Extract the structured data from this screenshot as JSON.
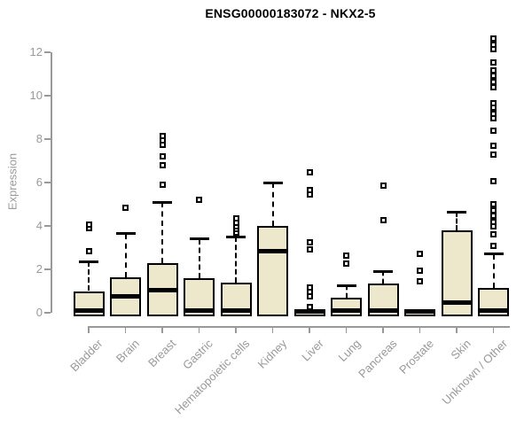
{
  "chart_data": {
    "type": "box",
    "title": "ENSG00000183072 - NKX2-5",
    "ylabel": "Expression",
    "xlabel": "",
    "ylim": [
      0,
      12.8
    ],
    "yticks": [
      0,
      2,
      4,
      6,
      8,
      10,
      12
    ],
    "grid": false,
    "legend": "none",
    "categories": [
      "Bladder",
      "Brain",
      "Breast",
      "Gastric",
      "Hematopoietic cells",
      "Kidney",
      "Liver",
      "Lung",
      "Pancreas",
      "Prostate",
      "Skin",
      "Unknown / Other"
    ],
    "series": [
      {
        "name": "Bladder",
        "whisker_low": 0,
        "q1": 0,
        "median": 0.1,
        "q3": 1.0,
        "whisker_high": 2.35,
        "outliers": [
          2.85,
          3.9,
          4.05
        ]
      },
      {
        "name": "Brain",
        "whisker_low": 0,
        "q1": 0,
        "median": 0.75,
        "q3": 1.65,
        "whisker_high": 3.65,
        "outliers": [
          4.85
        ]
      },
      {
        "name": "Breast",
        "whisker_low": 0,
        "q1": 0,
        "median": 1.05,
        "q3": 2.3,
        "whisker_high": 5.1,
        "outliers": [
          5.9,
          6.8,
          7.2,
          7.75,
          7.95,
          8.15
        ]
      },
      {
        "name": "Gastric",
        "whisker_low": 0,
        "q1": 0,
        "median": 0.1,
        "q3": 1.6,
        "whisker_high": 3.4,
        "outliers": [
          5.2
        ]
      },
      {
        "name": "Hematopoietic cells",
        "whisker_low": 0,
        "q1": 0,
        "median": 0.1,
        "q3": 1.4,
        "whisker_high": 3.5,
        "outliers": [
          3.7,
          3.85,
          4.0,
          4.15,
          4.35
        ]
      },
      {
        "name": "Kidney",
        "whisker_low": 0,
        "q1": 0,
        "median": 2.85,
        "q3": 4.0,
        "whisker_high": 6.0,
        "outliers": []
      },
      {
        "name": "Liver",
        "whisker_low": 0,
        "q1": 0,
        "median": 0.05,
        "q3": 0.1,
        "whisker_high": 0.1,
        "outliers": [
          0.25,
          0.75,
          0.95,
          1.15,
          2.9,
          3.25,
          5.45,
          5.65,
          6.45
        ]
      },
      {
        "name": "Lung",
        "whisker_low": 0,
        "q1": 0,
        "median": 0.1,
        "q3": 0.7,
        "whisker_high": 1.25,
        "outliers": [
          2.25,
          2.65
        ]
      },
      {
        "name": "Pancreas",
        "whisker_low": 0,
        "q1": 0,
        "median": 0.1,
        "q3": 1.35,
        "whisker_high": 1.9,
        "outliers": [
          4.25,
          5.85
        ]
      },
      {
        "name": "Prostate",
        "whisker_low": 0,
        "q1": 0,
        "median": 0.05,
        "q3": 0.1,
        "whisker_high": 0.1,
        "outliers": [
          1.45,
          1.95,
          2.7
        ]
      },
      {
        "name": "Skin",
        "whisker_low": 0,
        "q1": 0,
        "median": 0.45,
        "q3": 3.8,
        "whisker_high": 4.65,
        "outliers": []
      },
      {
        "name": "Unknown / Other",
        "whisker_low": 0,
        "q1": 0,
        "median": 0.1,
        "q3": 1.15,
        "whisker_high": 2.7,
        "outliers": [
          3.1,
          3.6,
          4.0,
          4.2,
          4.45,
          4.7,
          5.0,
          6.05,
          7.3,
          7.7,
          8.4,
          8.95,
          9.15,
          9.45,
          9.65,
          10.4,
          10.65,
          10.9,
          11.15,
          11.55,
          12.15,
          12.35,
          12.65
        ]
      }
    ],
    "colors": {
      "box_fill": "#ede8cc",
      "box_border": "#000000",
      "median": "#000000",
      "outlier_border": "#000000",
      "axis": "#999999",
      "title": "#000000"
    }
  }
}
